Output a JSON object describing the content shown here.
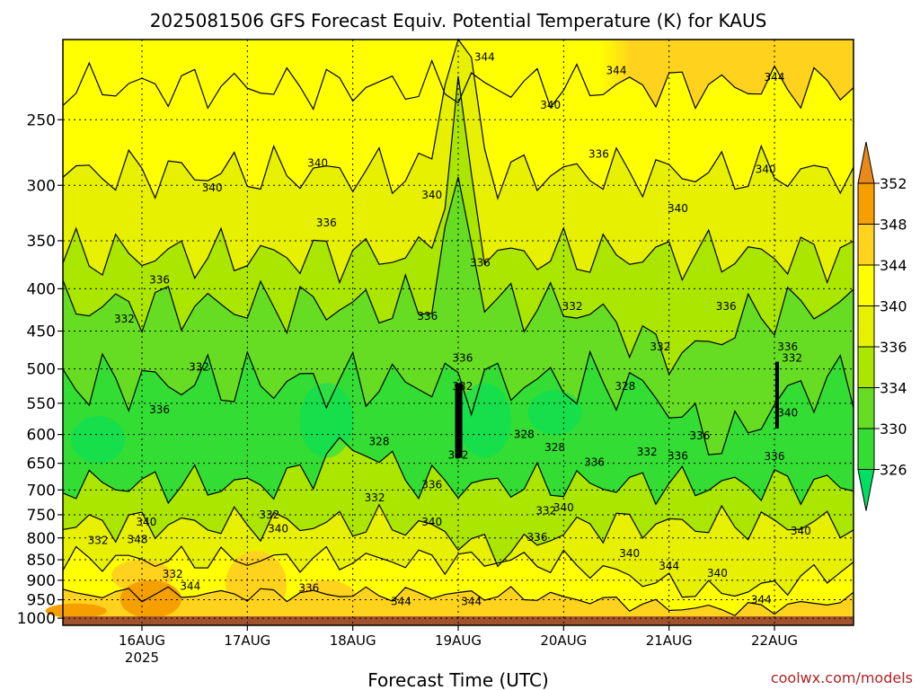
{
  "chart_data": {
    "type": "heatmap",
    "title": "2025081506 GFS Forecast Equiv. Potential Temperature (K) for KAUS",
    "xlabel": "Forecast Time (UTC)",
    "ylabel": "",
    "credit": "coolwx.com/models",
    "x_ticks": [
      {
        "label": "16AUG",
        "sub": "2025",
        "t": 18
      },
      {
        "label": "17AUG",
        "sub": "",
        "t": 42
      },
      {
        "label": "18AUG",
        "sub": "",
        "t": 66
      },
      {
        "label": "19AUG",
        "sub": "",
        "t": 90
      },
      {
        "label": "20AUG",
        "sub": "",
        "t": 114
      },
      {
        "label": "21AUG",
        "sub": "",
        "t": 138
      },
      {
        "label": "22AUG",
        "sub": "",
        "t": 162
      }
    ],
    "x_range_hours": [
      0,
      180
    ],
    "y_ticks": [
      "250",
      "300",
      "350",
      "400",
      "450",
      "500",
      "550",
      "600",
      "650",
      "700",
      "750",
      "800",
      "850",
      "900",
      "950",
      "1000"
    ],
    "y_range_hpa": [
      200,
      1020
    ],
    "y_scale": "log",
    "grid": true,
    "colorbar": {
      "levels": [
        326,
        330,
        334,
        336,
        340,
        344,
        348,
        352
      ],
      "labels": [
        "326",
        "330",
        "334",
        "336",
        "340",
        "344",
        "348",
        "352"
      ],
      "colors": [
        "#00e060",
        "#33dd33",
        "#66dd22",
        "#aae600",
        "#e6f000",
        "#ffff00",
        "#ffd21e",
        "#f5a000",
        "#e8891a"
      ],
      "placement": "right"
    },
    "ground_color": "#a0522d",
    "contour_labels": [
      {
        "text": "344",
        "t": 96,
        "p": 210
      },
      {
        "text": "344",
        "t": 126,
        "p": 218
      },
      {
        "text": "344",
        "t": 162,
        "p": 222
      },
      {
        "text": "340",
        "t": 111,
        "p": 240
      },
      {
        "text": "340",
        "t": 160,
        "p": 287
      },
      {
        "text": "340",
        "t": 58,
        "p": 282
      },
      {
        "text": "340",
        "t": 34,
        "p": 302
      },
      {
        "text": "340",
        "t": 84,
        "p": 308
      },
      {
        "text": "340",
        "t": 140,
        "p": 320
      },
      {
        "text": "336",
        "t": 122,
        "p": 275
      },
      {
        "text": "336",
        "t": 60,
        "p": 333
      },
      {
        "text": "336",
        "t": 95,
        "p": 372
      },
      {
        "text": "336",
        "t": 22,
        "p": 390
      },
      {
        "text": "336",
        "t": 151,
        "p": 420
      },
      {
        "text": "336",
        "t": 83,
        "p": 432
      },
      {
        "text": "332",
        "t": 14,
        "p": 435
      },
      {
        "text": "332",
        "t": 116,
        "p": 420
      },
      {
        "text": "332",
        "t": 31,
        "p": 497
      },
      {
        "text": "332",
        "t": 136,
        "p": 470
      },
      {
        "text": "336",
        "t": 165,
        "p": 470
      },
      {
        "text": "332",
        "t": 166,
        "p": 485
      },
      {
        "text": "336",
        "t": 91,
        "p": 485
      },
      {
        "text": "332",
        "t": 91,
        "p": 525
      },
      {
        "text": "328",
        "t": 128,
        "p": 525
      },
      {
        "text": "336",
        "t": 22,
        "p": 560
      },
      {
        "text": "340",
        "t": 165,
        "p": 565
      },
      {
        "text": "328",
        "t": 72,
        "p": 612
      },
      {
        "text": "328",
        "t": 105,
        "p": 600
      },
      {
        "text": "328",
        "t": 112,
        "p": 622
      },
      {
        "text": "336",
        "t": 145,
        "p": 602
      },
      {
        "text": "332",
        "t": 133,
        "p": 630
      },
      {
        "text": "336",
        "t": 140,
        "p": 637
      },
      {
        "text": "336",
        "t": 162,
        "p": 638
      },
      {
        "text": "332",
        "t": 90,
        "p": 635
      },
      {
        "text": "336",
        "t": 121,
        "p": 648
      },
      {
        "text": "336",
        "t": 84,
        "p": 690
      },
      {
        "text": "332",
        "t": 71,
        "p": 715
      },
      {
        "text": "340",
        "t": 114,
        "p": 735
      },
      {
        "text": "332",
        "t": 110,
        "p": 742
      },
      {
        "text": "340",
        "t": 84,
        "p": 765
      },
      {
        "text": "332",
        "t": 47,
        "p": 750
      },
      {
        "text": "340",
        "t": 19,
        "p": 765
      },
      {
        "text": "340",
        "t": 49,
        "p": 780
      },
      {
        "text": "340",
        "t": 168,
        "p": 785
      },
      {
        "text": "336",
        "t": 108,
        "p": 798
      },
      {
        "text": "348",
        "t": 17,
        "p": 803
      },
      {
        "text": "332",
        "t": 8,
        "p": 805
      },
      {
        "text": "340",
        "t": 129,
        "p": 835
      },
      {
        "text": "344",
        "t": 138,
        "p": 865
      },
      {
        "text": "340",
        "t": 149,
        "p": 882
      },
      {
        "text": "332",
        "t": 25,
        "p": 885
      },
      {
        "text": "344",
        "t": 29,
        "p": 915
      },
      {
        "text": "336",
        "t": 56,
        "p": 920
      },
      {
        "text": "344",
        "t": 77,
        "p": 955
      },
      {
        "text": "344",
        "t": 93,
        "p": 955
      },
      {
        "text": "344",
        "t": 159,
        "p": 950
      }
    ]
  }
}
